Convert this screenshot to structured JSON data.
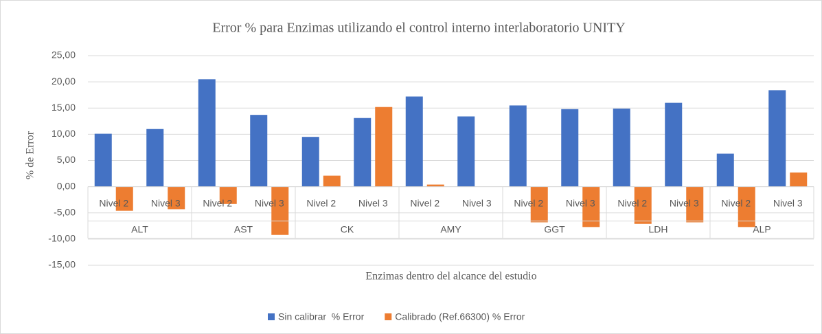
{
  "chart_data": {
    "type": "bar",
    "title": "Error % para Enzimas utilizando el control interno interlaboratorio UNITY",
    "y_axis_label": "% de Error",
    "x_axis_label": "Enzimas dentro del alcance del estudio",
    "categories": [
      "Nivel 2",
      "Nivel 3",
      "Nivel 2",
      "Nivel 3",
      "Nivel 2",
      "Nivel 3",
      "Nivel 2",
      "Nivel 3",
      "Nivel 2",
      "Nivel 3",
      "Nivel 2",
      "Nivel 3",
      "Nivel 2",
      "Nivel 3"
    ],
    "groups": [
      "ALT",
      "AST",
      "CK",
      "AMY",
      "GGT",
      "LDH",
      "ALP"
    ],
    "series": [
      {
        "name": "Sin calibrar  % Error",
        "color": "#4472c4",
        "values": [
          10.1,
          11.0,
          20.5,
          13.7,
          9.5,
          13.1,
          17.2,
          13.4,
          15.5,
          14.8,
          14.9,
          16.0,
          6.3,
          18.4
        ]
      },
      {
        "name": "Calibrado (Ref.66300) % Error",
        "color": "#ed7d31",
        "values": [
          -4.6,
          -4.3,
          -3.3,
          -9.2,
          2.1,
          15.2,
          0.4,
          0,
          -6.8,
          -7.7,
          -7.1,
          -6.8,
          -7.7,
          2.7
        ]
      }
    ],
    "ylim": [
      -15,
      25
    ],
    "yticks": [
      {
        "value": -15,
        "label": "-15,00"
      },
      {
        "value": -10,
        "label": "-10,00"
      },
      {
        "value": -5,
        "label": "-5,00"
      },
      {
        "value": 0,
        "label": "0,00"
      },
      {
        "value": 5,
        "label": "5,00"
      },
      {
        "value": 10,
        "label": "10,00"
      },
      {
        "value": 15,
        "label": "15,00"
      },
      {
        "value": 20,
        "label": "20,00"
      },
      {
        "value": 25,
        "label": "25,00"
      }
    ],
    "grid": true,
    "legend": "bottom"
  }
}
